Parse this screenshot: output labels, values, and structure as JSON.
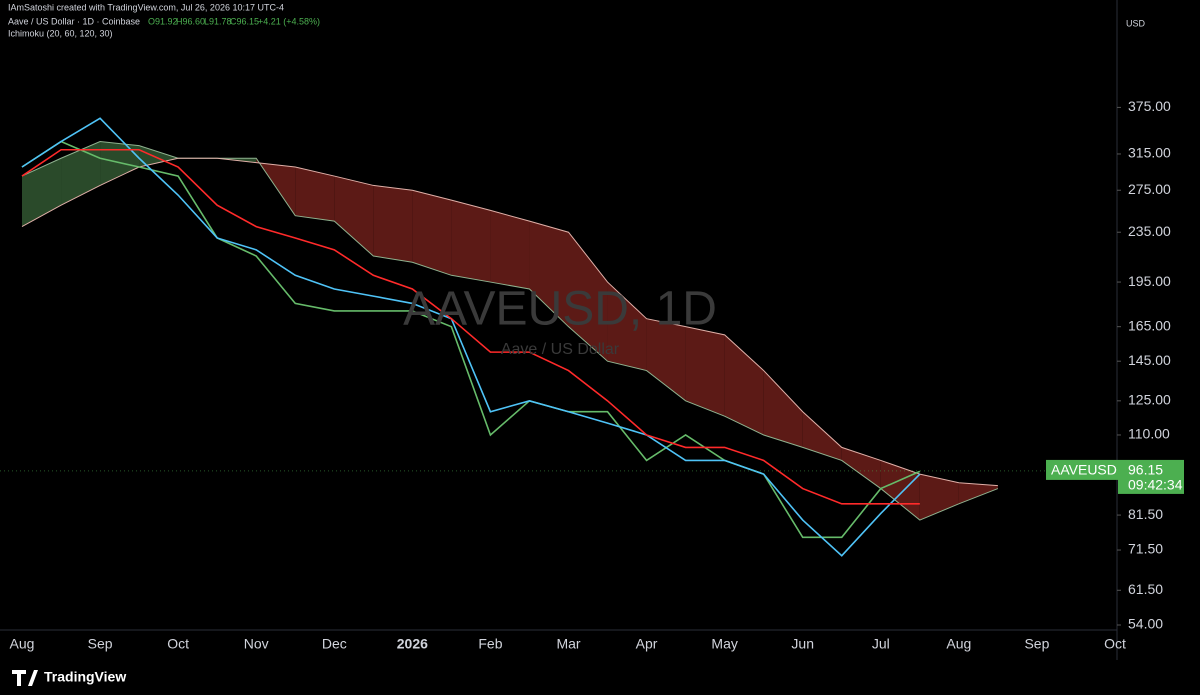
{
  "header": {
    "credit": "IAmSatoshi created with TradingView.com, Jul 26, 2026 10:17 UTC-4",
    "symbol": "Aave / US Dollar · 1D · Coinbase",
    "ohlc": [
      "O91.92",
      "H96.60",
      "L91.78",
      "C96.15"
    ],
    "change": "+4.21 (+4.58%)",
    "indicator": "Ichimoku (20, 60, 120, 30)"
  },
  "footer": {
    "brand": "TradingView"
  },
  "chart_data": {
    "type": "line",
    "currency": "USD",
    "watermark": "AAVEUSD, 1D",
    "watermark_sub": "Aave / US Dollar",
    "price_tag": {
      "symbol": "AAVEUSD",
      "price": 96.15,
      "countdown": "09:42:34",
      "color": "#4caf50"
    },
    "categories": [
      "Aug",
      null,
      "Sep",
      null,
      "Oct",
      null,
      "Nov",
      null,
      "Dec",
      null,
      "2026",
      null,
      "Feb",
      null,
      "Mar",
      null,
      "Apr",
      null,
      "May",
      null,
      "Jun",
      null,
      "Jul",
      null,
      "Aug",
      null,
      "Sep",
      null,
      "Oct"
    ],
    "series": [
      {
        "color": "#66bb6a",
        "values": [
          300,
          330,
          310,
          300,
          290,
          230,
          215,
          180,
          175,
          175,
          175,
          165,
          110,
          125,
          120,
          120,
          100,
          110,
          100,
          95,
          75,
          75,
          90,
          96,
          null,
          null,
          null,
          null,
          null
        ]
      },
      {
        "color": "#4fc3f7",
        "values": [
          300,
          330,
          360,
          310,
          270,
          230,
          220,
          200,
          190,
          185,
          180,
          170,
          120,
          125,
          120,
          115,
          110,
          100,
          100,
          95,
          80,
          70,
          82,
          95,
          null,
          null,
          null,
          null,
          null
        ]
      },
      {
        "color": "#ff2a2a",
        "values": [
          290,
          320,
          320,
          320,
          300,
          260,
          240,
          230,
          220,
          200,
          190,
          170,
          150,
          150,
          140,
          125,
          110,
          105,
          105,
          100,
          90,
          85,
          85,
          85,
          null,
          null,
          null,
          null,
          null
        ]
      }
    ],
    "cloud": {
      "span_a": [
        290,
        310,
        330,
        325,
        310,
        310,
        310,
        250,
        245,
        215,
        210,
        200,
        195,
        190,
        165,
        145,
        140,
        125,
        118,
        110,
        105,
        100,
        90,
        80,
        85,
        90,
        null,
        null,
        null
      ],
      "span_b": [
        240,
        260,
        280,
        300,
        310,
        310,
        305,
        300,
        290,
        280,
        275,
        265,
        255,
        245,
        235,
        195,
        170,
        165,
        160,
        140,
        120,
        105,
        100,
        95,
        92,
        91,
        null,
        null,
        null
      ],
      "up_color": "#2a4a2a",
      "down_color": "#5c1a16"
    },
    "log_scale": true,
    "ylim": [
      53,
      530
    ],
    "yticks": [
      {
        "value": 375,
        "label": "375.00"
      },
      {
        "value": 315,
        "label": "315.00"
      },
      {
        "value": 275,
        "label": "275.00"
      },
      {
        "value": 235,
        "label": "235.00"
      },
      {
        "value": 195,
        "label": "195.00"
      },
      {
        "value": 165,
        "label": "165.00"
      },
      {
        "value": 145,
        "label": "145.00"
      },
      {
        "value": 125,
        "label": "125.00"
      },
      {
        "value": 110,
        "label": "110.00"
      },
      {
        "value": 81.5,
        "label": "81.50"
      },
      {
        "value": 71.5,
        "label": "71.50"
      },
      {
        "value": 61.5,
        "label": "61.50"
      },
      {
        "value": 54,
        "label": "54.00"
      }
    ],
    "grid": false
  }
}
